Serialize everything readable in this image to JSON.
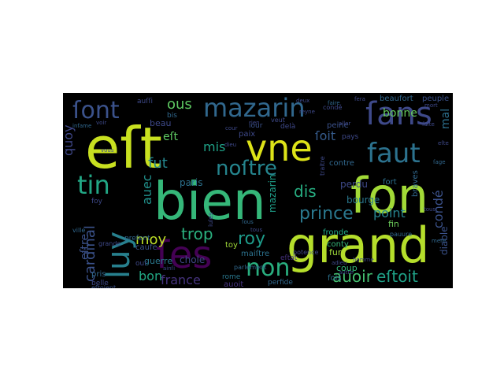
{
  "wordcloud": {
    "words": [
      {
        "text": "eſt",
        "color": "#c8e020"
      },
      {
        "text": "ſon",
        "color": "#a2da37"
      },
      {
        "text": "bien",
        "color": "#35b779"
      },
      {
        "text": "grand",
        "color": "#b5de2b"
      },
      {
        "text": "vne",
        "color": "#dde318"
      },
      {
        "text": "ſes",
        "color": "#440154"
      },
      {
        "text": "ſans",
        "color": "#3e4989"
      },
      {
        "text": "mazarin",
        "color": "#31688e"
      },
      {
        "text": "faut",
        "color": "#2c728e"
      },
      {
        "text": "luy",
        "color": "#27808e"
      },
      {
        "text": "ſont",
        "color": "#3b528b"
      },
      {
        "text": "noſtre",
        "color": "#25858e"
      },
      {
        "text": "tin",
        "color": "#22a785"
      },
      {
        "text": "non",
        "color": "#29af7f"
      },
      {
        "text": "roy",
        "color": "#1e9b8a"
      },
      {
        "text": "prince",
        "color": "#2a788e"
      },
      {
        "text": "auoir",
        "color": "#44bf70"
      },
      {
        "text": "eſtoit",
        "color": "#1fa187"
      },
      {
        "text": "trop",
        "color": "#2ab07f"
      },
      {
        "text": "cardinal",
        "color": "#3b528b"
      },
      {
        "text": "moy",
        "color": "#bddf26"
      },
      {
        "text": "bon",
        "color": "#22a884"
      },
      {
        "text": "france",
        "color": "#46337f"
      },
      {
        "text": "condé",
        "color": "#3b528b"
      },
      {
        "text": "point",
        "color": "#26828e"
      },
      {
        "text": "dis",
        "color": "#27ad81"
      },
      {
        "text": "ous",
        "color": "#5ec962"
      },
      {
        "text": "mis",
        "color": "#1fa187"
      },
      {
        "text": "fut",
        "color": "#24868e"
      },
      {
        "text": "quoy",
        "color": "#3f4788"
      },
      {
        "text": "mal",
        "color": "#2d708e"
      },
      {
        "text": "ſoit",
        "color": "#365c8d"
      },
      {
        "text": "bonne",
        "color": "#67cc5c"
      },
      {
        "text": "auec",
        "color": "#21918c"
      },
      {
        "text": "eſtre",
        "color": "#3b528b"
      },
      {
        "text": "eſt",
        "color": "#5ec962"
      },
      {
        "text": "paris",
        "color": "#2c728e"
      },
      {
        "text": "chole",
        "color": "#3f4788"
      },
      {
        "text": "guerre",
        "color": "#2a788e"
      },
      {
        "text": "fronde",
        "color": "#22a884"
      },
      {
        "text": "fin",
        "color": "#6ccd5a"
      },
      {
        "text": "coup",
        "color": "#35b779"
      },
      {
        "text": "fois",
        "color": "#2c728e"
      },
      {
        "text": "diable",
        "color": "#3b528b"
      },
      {
        "text": "mazarin",
        "color": "#1f9e89"
      },
      {
        "text": "bourge",
        "color": "#2a788e"
      },
      {
        "text": "perdu",
        "color": "#3e4989"
      },
      {
        "text": "contre",
        "color": "#31688e"
      },
      {
        "text": "fort",
        "color": "#2d708e"
      },
      {
        "text": "braves",
        "color": "#31688e"
      },
      {
        "text": "beaufort",
        "color": "#31688e"
      },
      {
        "text": "peuple",
        "color": "#3b528b"
      },
      {
        "text": "peine",
        "color": "#3b528b"
      },
      {
        "text": "pays",
        "color": "#3e4989"
      },
      {
        "text": "conty",
        "color": "#35b779"
      },
      {
        "text": "maiſtre",
        "color": "#2c728e"
      },
      {
        "text": "toy",
        "color": "#a0da39"
      },
      {
        "text": "rome",
        "color": "#2a788e"
      },
      {
        "text": "caufe",
        "color": "#3b528b"
      },
      {
        "text": "pris",
        "color": "#31688e"
      },
      {
        "text": "belle",
        "color": "#3e4989"
      },
      {
        "text": "eſtoient",
        "color": "#3b528b"
      },
      {
        "text": "auoit",
        "color": "#46337f"
      },
      {
        "text": "perfide",
        "color": "#31688e"
      },
      {
        "text": "beau",
        "color": "#3e4989"
      },
      {
        "text": "bis",
        "color": "#31688e"
      },
      {
        "text": "paix",
        "color": "#3e4989"
      },
      {
        "text": "delà",
        "color": "#3e4989"
      },
      {
        "text": "iour",
        "color": "#3b528b"
      },
      {
        "text": "veut",
        "color": "#3e4989"
      },
      {
        "text": "auſſi",
        "color": "#3e4989"
      },
      {
        "text": "preſent",
        "color": "#31688e"
      },
      {
        "text": "our",
        "color": "#3e4989"
      },
      {
        "text": "foy",
        "color": "#3e4989"
      },
      {
        "text": "ville",
        "color": "#31688e"
      },
      {
        "text": "grande",
        "color": "#3e4989"
      },
      {
        "text": "infame",
        "color": "#31688e"
      },
      {
        "text": "potence",
        "color": "#3e4989"
      },
      {
        "text": "traitre",
        "color": "#3e4989"
      },
      {
        "text": "homme",
        "color": "#3e4989"
      },
      {
        "text": "parlement",
        "color": "#31688e"
      },
      {
        "text": "iules",
        "color": "#3e4989"
      },
      {
        "text": "eſtat",
        "color": "#46337f"
      },
      {
        "text": "fur",
        "color": "#a0da39"
      },
      {
        "text": "pauure",
        "color": "#31688e"
      },
      {
        "text": "adieu",
        "color": "#3e4989"
      },
      {
        "text": "rien",
        "color": "#3e4989"
      },
      {
        "text": "cour",
        "color": "#3e4989"
      },
      {
        "text": "dieu",
        "color": "#3e4989"
      },
      {
        "text": "ainſi",
        "color": "#3e4989"
      },
      {
        "text": "ſous",
        "color": "#31688e"
      },
      {
        "text": "tous",
        "color": "#3e4989"
      },
      {
        "text": "autre",
        "color": "#3e4989"
      },
      {
        "text": "mort",
        "color": "#3e4989"
      },
      {
        "text": "faire",
        "color": "#31688e"
      },
      {
        "text": "aller",
        "color": "#3e4989"
      },
      {
        "text": "eſte",
        "color": "#3e4989"
      },
      {
        "text": "tous",
        "color": "#3e4989"
      },
      {
        "text": "vous",
        "color": "#3e4989"
      },
      {
        "text": "voir",
        "color": "#3e4989"
      },
      {
        "text": "condé",
        "color": "#3e4989"
      },
      {
        "text": "faite",
        "color": "#3e4989"
      },
      {
        "text": "fera",
        "color": "#3e4989"
      },
      {
        "text": "mere",
        "color": "#31688e"
      },
      {
        "text": "reyne",
        "color": "#3e4989"
      },
      {
        "text": "deux",
        "color": "#3e4989"
      },
      {
        "text": "ſage",
        "color": "#31688e"
      }
    ]
  }
}
